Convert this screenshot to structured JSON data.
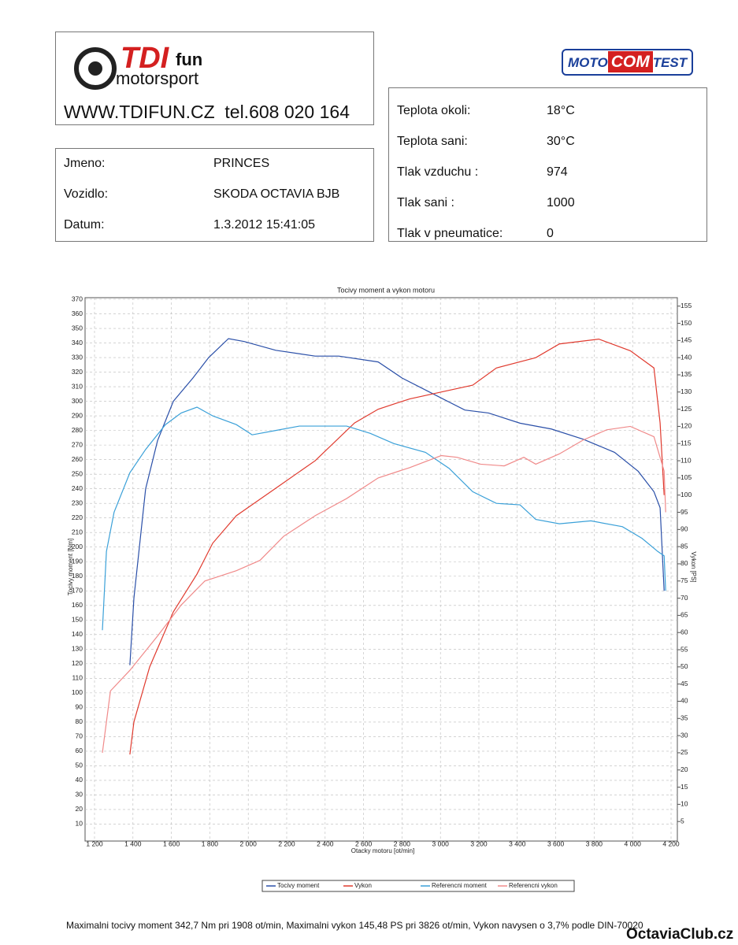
{
  "header": {
    "logo_main": "TDI",
    "logo_sup": "fun",
    "logo_sub": "motorsport",
    "contact": "WWW.TDIFUN.CZ  tel.608 020 164",
    "brand": {
      "left": "MOTO",
      "mid": "COM",
      "right": "TEST"
    }
  },
  "info": {
    "rows": [
      [
        "Jmeno:",
        "PRINCES"
      ],
      [
        "Vozidlo:",
        "SKODA OCTAVIA BJB"
      ],
      [
        "Datum:",
        "1.3.2012 15:41:05"
      ]
    ]
  },
  "conditions": {
    "rows": [
      [
        "Teplota okoli:",
        "18°C"
      ],
      [
        "Teplota sani:",
        "30°C"
      ],
      [
        "Tlak vzduchu :",
        "974"
      ],
      [
        "Tlak sani :",
        "1000"
      ],
      [
        "Tlak v pneumatice:",
        "0"
      ]
    ]
  },
  "chart_data": {
    "type": "line",
    "title": "Tocivy moment a vykon motoru",
    "x_label": "Otacky motoru [ot/min]",
    "y_label": "Tocivy moment [Nm]",
    "y2_label": "Vykon [PS]",
    "grid": true,
    "xlim": [
      1200,
      4200
    ],
    "xticks": [
      {
        "value": 1200,
        "label": "1 200"
      },
      {
        "value": 1400,
        "label": "1 400"
      },
      {
        "value": 1600,
        "label": "1 600"
      },
      {
        "value": 1800,
        "label": "1 800"
      },
      {
        "value": 2000,
        "label": "2 000"
      },
      {
        "value": 2200,
        "label": "2 200"
      },
      {
        "value": 2400,
        "label": "2 400"
      },
      {
        "value": 2600,
        "label": "2 600"
      },
      {
        "value": 2800,
        "label": "2 800"
      },
      {
        "value": 3000,
        "label": "3 000"
      },
      {
        "value": 3200,
        "label": "3 200"
      },
      {
        "value": 3400,
        "label": "3 400"
      },
      {
        "value": 3600,
        "label": "3 600"
      },
      {
        "value": 3800,
        "label": "3 800"
      },
      {
        "value": 4000,
        "label": "4 000"
      },
      {
        "value": 4200,
        "label": "4 200"
      }
    ],
    "ylim": [
      0,
      370
    ],
    "yticks": [
      10,
      20,
      30,
      40,
      50,
      60,
      70,
      80,
      90,
      100,
      110,
      120,
      130,
      140,
      150,
      160,
      170,
      180,
      190,
      200,
      210,
      220,
      230,
      240,
      250,
      260,
      270,
      280,
      290,
      300,
      310,
      320,
      330,
      340,
      350,
      360,
      370
    ],
    "y2lim": [
      0,
      157
    ],
    "y2ticks": [
      5,
      10,
      15,
      20,
      25,
      30,
      35,
      40,
      45,
      50,
      55,
      60,
      65,
      70,
      75,
      80,
      85,
      90,
      95,
      100,
      105,
      110,
      115,
      120,
      125,
      130,
      135,
      140,
      145,
      150,
      155
    ],
    "series": [
      {
        "name": "Tocivy moment",
        "color": "#2a4fa8",
        "x": [
          1384,
          1405,
          1466,
          1528,
          1610,
          1712,
          1794,
          1897,
          1979,
          2143,
          2348,
          2471,
          2676,
          2800,
          2963,
          3127,
          3250,
          3414,
          3577,
          3742,
          3906,
          4029,
          4111,
          4143,
          4164
        ],
        "values": [
          119,
          165,
          240,
          273,
          300,
          316,
          330,
          343,
          341,
          335,
          331,
          331,
          327,
          316,
          305,
          294,
          292,
          285,
          281,
          274,
          265,
          252,
          238,
          227,
          170
        ]
      },
      {
        "name": "Vykon",
        "color": "#e03a2e",
        "axis": "y2",
        "x": [
          1384,
          1405,
          1487,
          1610,
          1733,
          1815,
          1938,
          2143,
          2348,
          2553,
          2676,
          2840,
          3004,
          3168,
          3291,
          3496,
          3619,
          3824,
          3988,
          4111,
          4143,
          4164
        ],
        "values": [
          24.5,
          34,
          50,
          66,
          77,
          86,
          94,
          102,
          110,
          121,
          125,
          128,
          130,
          132,
          137,
          140,
          144,
          145.4,
          142,
          137,
          121,
          100
        ]
      },
      {
        "name": "Referencni moment",
        "color": "#3aa0d8",
        "x": [
          1241,
          1262,
          1302,
          1384,
          1466,
          1569,
          1651,
          1733,
          1815,
          1938,
          2020,
          2143,
          2266,
          2389,
          2512,
          2635,
          2758,
          2922,
          3045,
          3168,
          3291,
          3414,
          3496,
          3619,
          3783,
          3947,
          4049,
          4131,
          4164,
          4172
        ],
        "values": [
          143,
          197,
          224,
          251,
          267,
          284,
          292,
          296,
          290,
          284,
          277,
          280,
          283,
          283,
          283,
          278,
          271,
          265,
          254,
          238,
          230,
          229,
          219,
          216,
          218,
          214,
          206,
          197,
          194,
          170
        ]
      },
      {
        "name": "Referencni vykon",
        "color": "#f08a8a",
        "axis": "y2",
        "x": [
          1241,
          1283,
          1384,
          1528,
          1651,
          1774,
          1938,
          2061,
          2184,
          2348,
          2512,
          2676,
          2840,
          3004,
          3086,
          3209,
          3332,
          3434,
          3496,
          3619,
          3742,
          3865,
          3988,
          4111,
          4164,
          4172
        ],
        "values": [
          25,
          43,
          49,
          59,
          68,
          75,
          78,
          81,
          88,
          94,
          99,
          105,
          108,
          111.5,
          111,
          109,
          108.5,
          111,
          109,
          112,
          116,
          119,
          120,
          117,
          107,
          95
        ]
      }
    ]
  },
  "footer": {
    "summary": "Maximalni tocivy moment 342,7 Nm pri 1908 ot/min,  Maximalni vykon 145,48 PS pri 3826 ot/min,  Vykon navysen o 3,7% podle DIN-70020",
    "watermark": "OctaviaClub.cz"
  }
}
